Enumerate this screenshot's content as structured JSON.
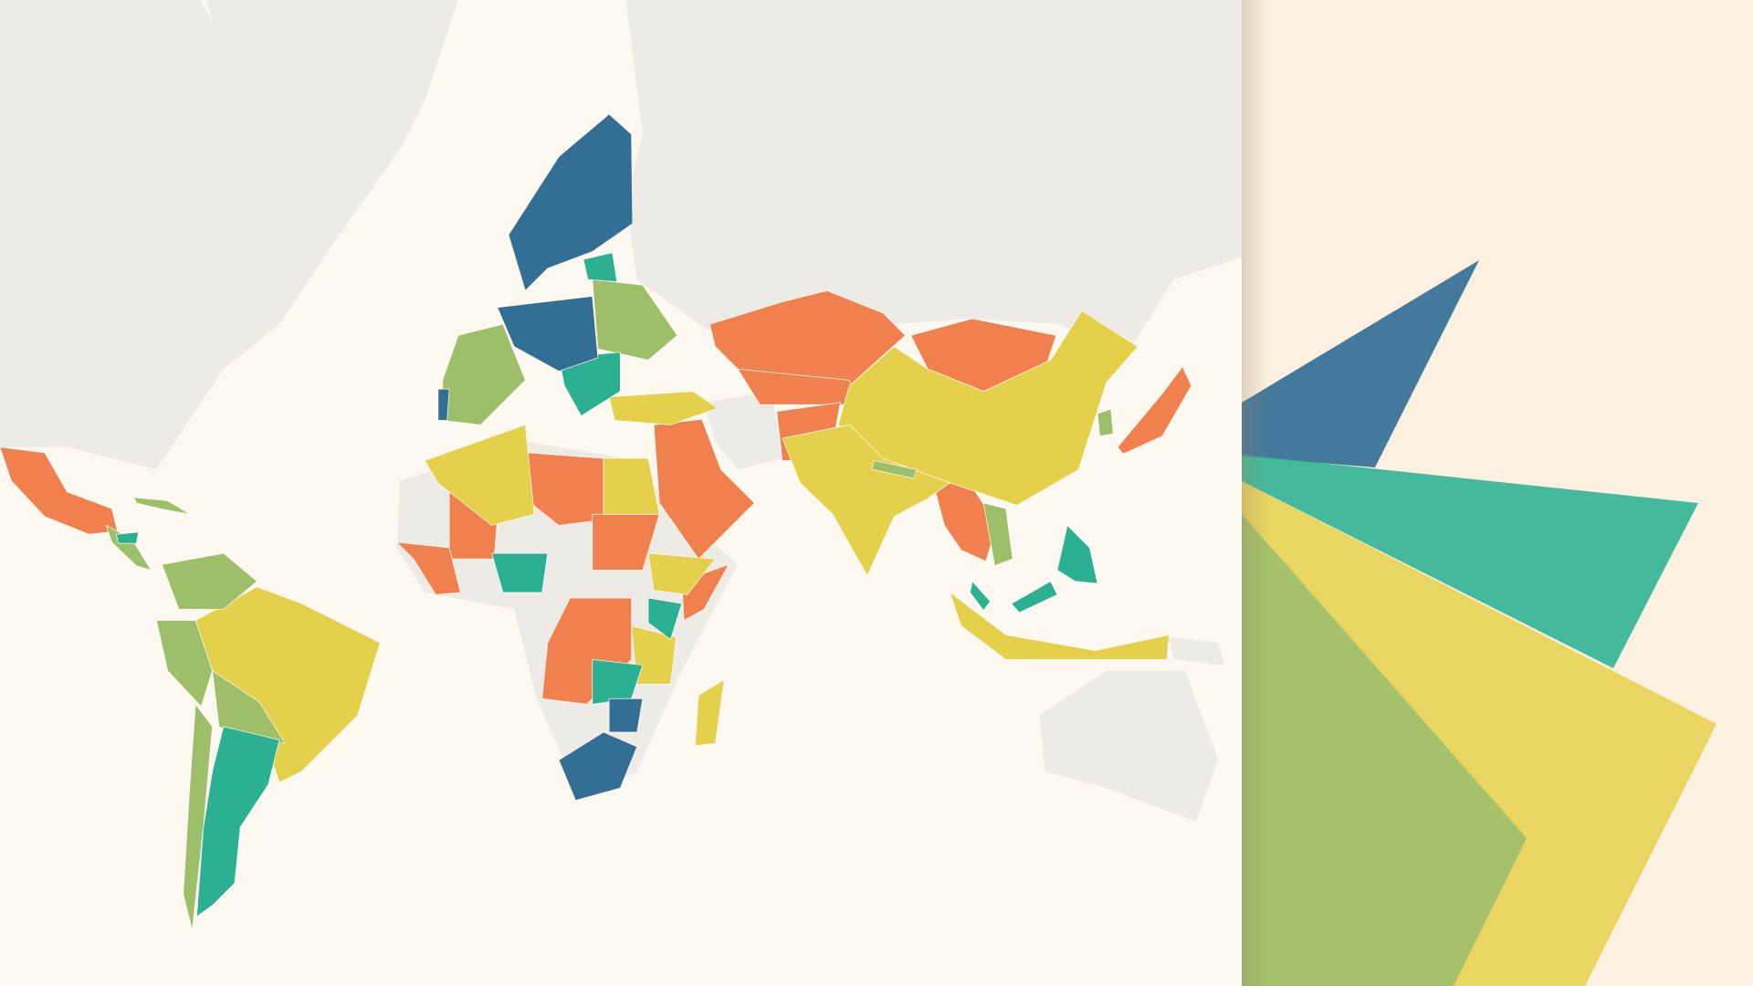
{
  "map": {
    "colors": {
      "background": "#fdf9f0",
      "no_data_land": "#ecebe6",
      "category_1": "#336f94",
      "category_2": "#2bb092",
      "category_3": "#9dbf6a",
      "category_4": "#e4d04b",
      "category_5": "#f0804e"
    }
  },
  "panel": {
    "background": "#fcf1e0",
    "shapes": [
      "#336f94",
      "#2bb092",
      "#e4d04b",
      "#9dbf6a"
    ]
  }
}
